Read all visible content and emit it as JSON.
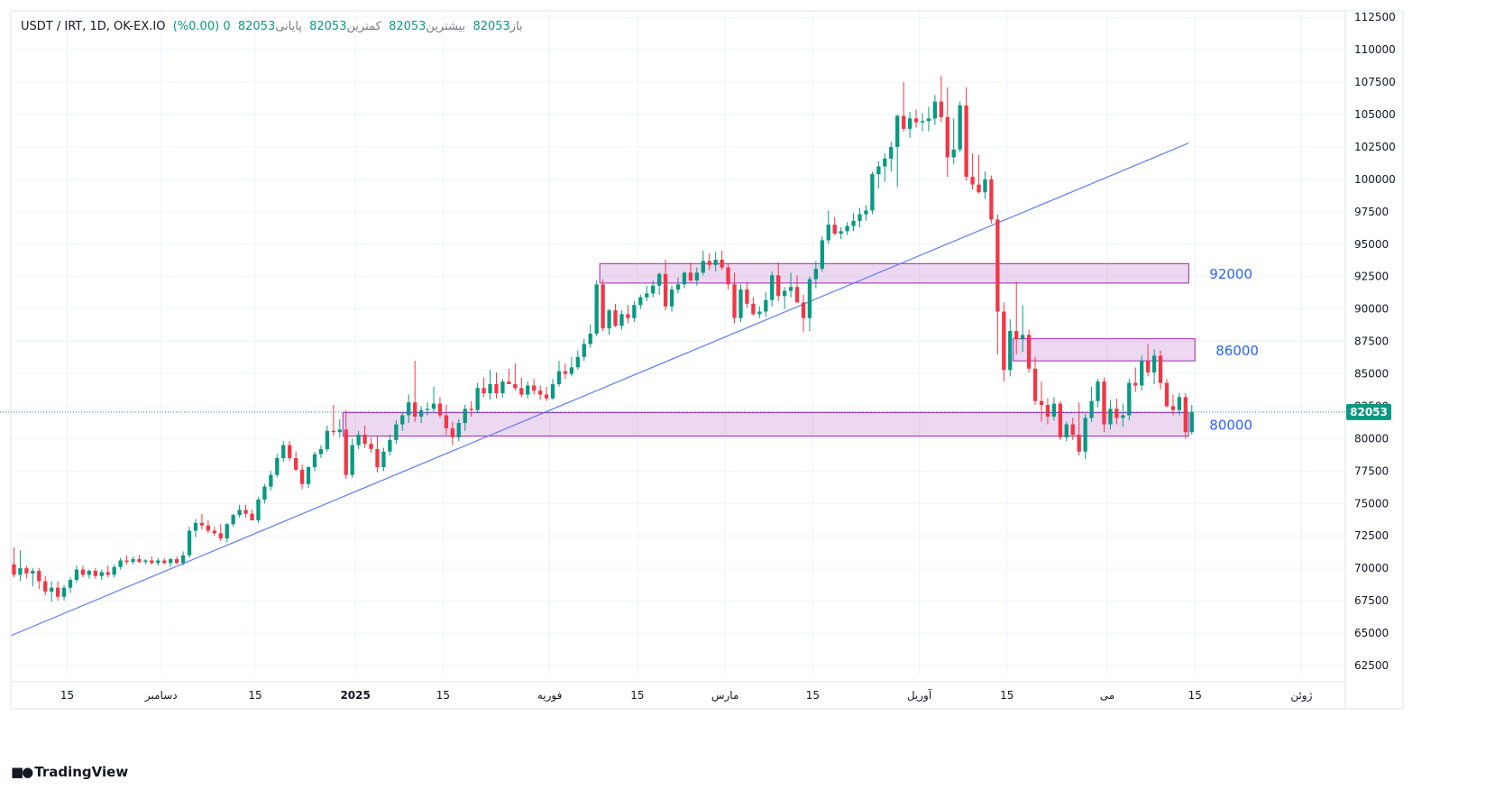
{
  "legend": {
    "symbol": "USDT / IRT, 1D, OK-EX.IO",
    "open_label": "باز",
    "open": "82053",
    "high_label": "بیشترین",
    "high": "82053",
    "low_label": "کمترین",
    "low": "82053",
    "close_label": "پایانی",
    "close": "82053",
    "change": "0 (0.00%)"
  },
  "branding": {
    "text": "TradingView"
  },
  "colors": {
    "up": "#089981",
    "down": "#f23645",
    "zone": "#9c27b0",
    "trend": "#5b7cf5",
    "zone_label": "#2962ff"
  },
  "chart_data": {
    "type": "candlestick",
    "y_axis": {
      "range": [
        61800,
        113000
      ],
      "ticks": [
        62500,
        65000,
        67500,
        70000,
        72500,
        75000,
        77500,
        80000,
        82500,
        85000,
        87500,
        90000,
        92500,
        95000,
        97500,
        100000,
        102500,
        105000,
        107500,
        110000,
        112500
      ],
      "tick_labels": [
        "62500",
        "65000",
        "67500",
        "70000",
        "72500",
        "75000",
        "77500",
        "80000",
        "82500",
        "85000",
        "87500",
        "90000",
        "92500",
        "95000",
        "97500",
        "100000",
        "102500",
        "105000",
        "107500",
        "110000",
        "112500"
      ]
    },
    "x_axis": {
      "range_days": [
        0,
        213
      ],
      "ticks": [
        {
          "day": 9,
          "label": "15",
          "bold": false
        },
        {
          "day": 24,
          "label": "دسامبر",
          "bold": false
        },
        {
          "day": 39,
          "label": "15",
          "bold": false
        },
        {
          "day": 55,
          "label": "2025",
          "bold": true
        },
        {
          "day": 69,
          "label": "15",
          "bold": false
        },
        {
          "day": 86,
          "label": "فوریه",
          "bold": false
        },
        {
          "day": 100,
          "label": "15",
          "bold": false
        },
        {
          "day": 114,
          "label": "مارس",
          "bold": false
        },
        {
          "day": 128,
          "label": "15",
          "bold": false
        },
        {
          "day": 145,
          "label": "آوریل",
          "bold": false
        },
        {
          "day": 159,
          "label": "15",
          "bold": false
        },
        {
          "day": 175,
          "label": "می",
          "bold": false
        },
        {
          "day": 189,
          "label": "15",
          "bold": false
        },
        {
          "day": 206,
          "label": "ژوئن",
          "bold": false
        }
      ]
    },
    "last_price": 82053,
    "last_price_label": "82053",
    "zones": [
      {
        "low": 92000,
        "high": 93500,
        "day_start": 94,
        "day_end": 188,
        "label": "92000"
      },
      {
        "low": 86000,
        "high": 87700,
        "day_start": 160,
        "day_end": 189,
        "label": "86000"
      },
      {
        "low": 80200,
        "high": 82000,
        "day_start": 53,
        "day_end": 188,
        "label": "80000"
      }
    ],
    "trendline": {
      "from": {
        "day": 0,
        "price": 64800
      },
      "to": {
        "day": 188,
        "price": 102800
      }
    },
    "candles": [
      [
        70300,
        71600,
        69300,
        69500
      ],
      [
        69500,
        71400,
        69000,
        70000
      ],
      [
        70000,
        70200,
        69200,
        69600
      ],
      [
        69600,
        70000,
        68600,
        69800
      ],
      [
        69800,
        70000,
        68400,
        69000
      ],
      [
        69000,
        69400,
        67900,
        68200
      ],
      [
        68200,
        69000,
        67400,
        68500
      ],
      [
        68500,
        69000,
        67500,
        67800
      ],
      [
        67800,
        68700,
        67500,
        68500
      ],
      [
        68500,
        69300,
        68100,
        69100
      ],
      [
        69100,
        70200,
        68900,
        69900
      ],
      [
        69900,
        70200,
        69300,
        69500
      ],
      [
        69500,
        69900,
        69200,
        69800
      ],
      [
        69800,
        70000,
        69200,
        69400
      ],
      [
        69400,
        69900,
        69100,
        69700
      ],
      [
        69700,
        70200,
        69300,
        69500
      ],
      [
        69500,
        70300,
        69300,
        70100
      ],
      [
        70100,
        70800,
        69900,
        70600
      ],
      [
        70600,
        71000,
        70300,
        70500
      ],
      [
        70500,
        70900,
        70300,
        70700
      ],
      [
        70700,
        71000,
        70400,
        70500
      ],
      [
        70500,
        70700,
        70300,
        70600
      ],
      [
        70600,
        70900,
        70300,
        70400
      ],
      [
        70400,
        70800,
        70200,
        70600
      ],
      [
        70600,
        70800,
        70300,
        70400
      ],
      [
        70400,
        70800,
        70100,
        70700
      ],
      [
        70700,
        70900,
        70300,
        70400
      ],
      [
        70400,
        71300,
        70200,
        71000
      ],
      [
        71000,
        73200,
        70800,
        72900
      ],
      [
        72900,
        73800,
        72400,
        73500
      ],
      [
        73500,
        74200,
        73000,
        73300
      ],
      [
        73300,
        73700,
        72700,
        72900
      ],
      [
        72900,
        73200,
        72500,
        72700
      ],
      [
        72700,
        73400,
        72100,
        72300
      ],
      [
        72300,
        73500,
        72000,
        73400
      ],
      [
        73400,
        74200,
        73200,
        74100
      ],
      [
        74100,
        74900,
        73900,
        74500
      ],
      [
        74500,
        74900,
        73900,
        74200
      ],
      [
        74200,
        74500,
        73700,
        73700
      ],
      [
        73700,
        75500,
        73500,
        75300
      ],
      [
        75300,
        76500,
        75000,
        76300
      ],
      [
        76300,
        77500,
        76000,
        77200
      ],
      [
        77200,
        78800,
        77000,
        78500
      ],
      [
        78500,
        79800,
        78200,
        79500
      ],
      [
        79500,
        79800,
        78300,
        78500
      ],
      [
        78500,
        79000,
        77500,
        77600
      ],
      [
        77600,
        78000,
        76100,
        76500
      ],
      [
        76500,
        77900,
        76200,
        77800
      ],
      [
        77800,
        79000,
        77500,
        78800
      ],
      [
        78800,
        79500,
        78500,
        79200
      ],
      [
        79200,
        81000,
        79000,
        80600
      ],
      [
        80600,
        82600,
        80200,
        80500
      ],
      [
        80500,
        81500,
        80100,
        80700
      ],
      [
        80700,
        82200,
        76900,
        77200
      ],
      [
        77200,
        80000,
        77000,
        79500
      ],
      [
        79500,
        80600,
        79200,
        80300
      ],
      [
        80300,
        81000,
        79300,
        79600
      ],
      [
        79600,
        80100,
        78900,
        79200
      ],
      [
        79200,
        80200,
        77400,
        77800
      ],
      [
        77800,
        79300,
        77500,
        79000
      ],
      [
        79000,
        80300,
        78700,
        79900
      ],
      [
        79900,
        81400,
        79600,
        81100
      ],
      [
        81100,
        82000,
        80600,
        81800
      ],
      [
        81800,
        83400,
        81200,
        82800
      ],
      [
        82800,
        86000,
        81300,
        81700
      ],
      [
        81700,
        82500,
        81200,
        82200
      ],
      [
        82200,
        82800,
        81800,
        82300
      ],
      [
        82300,
        84000,
        82000,
        82700
      ],
      [
        82700,
        83200,
        81600,
        81800
      ],
      [
        81800,
        82600,
        80300,
        80800
      ],
      [
        80800,
        81300,
        79500,
        80100
      ],
      [
        80100,
        81500,
        79800,
        81200
      ],
      [
        81200,
        82600,
        80600,
        82300
      ],
      [
        82300,
        82900,
        81700,
        82200
      ],
      [
        82200,
        84300,
        82000,
        83900
      ],
      [
        83900,
        84700,
        83200,
        83500
      ],
      [
        83500,
        85300,
        83000,
        84200
      ],
      [
        84200,
        85100,
        83100,
        83500
      ],
      [
        83500,
        84600,
        83200,
        84400
      ],
      [
        84400,
        85400,
        84200,
        84200
      ],
      [
        84200,
        85800,
        83700,
        83900
      ],
      [
        83900,
        84700,
        83200,
        83400
      ],
      [
        83400,
        84400,
        83100,
        84100
      ],
      [
        84100,
        84600,
        83400,
        83700
      ],
      [
        83700,
        84100,
        83000,
        83400
      ],
      [
        83400,
        84000,
        82900,
        83100
      ],
      [
        83100,
        84600,
        83000,
        84200
      ],
      [
        84200,
        86000,
        84000,
        85200
      ],
      [
        85200,
        85800,
        84600,
        85000
      ],
      [
        85000,
        86300,
        84800,
        85500
      ],
      [
        85500,
        86800,
        85300,
        86300
      ],
      [
        86300,
        87700,
        86000,
        87300
      ],
      [
        87300,
        88800,
        87000,
        88100
      ],
      [
        88100,
        92200,
        87900,
        91900
      ],
      [
        91900,
        92300,
        88300,
        88500
      ],
      [
        88500,
        90000,
        88000,
        89900
      ],
      [
        89900,
        90400,
        88600,
        88700
      ],
      [
        88700,
        89900,
        88400,
        89600
      ],
      [
        89600,
        90300,
        88900,
        89300
      ],
      [
        89300,
        90600,
        89000,
        90300
      ],
      [
        90300,
        91100,
        90000,
        90900
      ],
      [
        90900,
        91800,
        90600,
        91200
      ],
      [
        91200,
        92200,
        90900,
        91800
      ],
      [
        91800,
        92800,
        91100,
        92700
      ],
      [
        92700,
        93800,
        89900,
        90200
      ],
      [
        90200,
        91800,
        89800,
        91500
      ],
      [
        91500,
        92400,
        91200,
        91900
      ],
      [
        91900,
        92900,
        91600,
        92800
      ],
      [
        92800,
        93600,
        92100,
        92200
      ],
      [
        92200,
        93200,
        91800,
        92800
      ],
      [
        92800,
        94500,
        92600,
        93700
      ],
      [
        93700,
        94300,
        93000,
        93400
      ],
      [
        93400,
        94400,
        92900,
        93800
      ],
      [
        93800,
        94500,
        93000,
        93200
      ],
      [
        93200,
        93500,
        91500,
        91900
      ],
      [
        91900,
        92800,
        88900,
        89300
      ],
      [
        89300,
        91900,
        89000,
        91500
      ],
      [
        91500,
        92100,
        90100,
        90400
      ],
      [
        90400,
        90900,
        89500,
        89600
      ],
      [
        89600,
        90200,
        89300,
        89800
      ],
      [
        89800,
        91300,
        89400,
        90700
      ],
      [
        90700,
        92900,
        90200,
        92600
      ],
      [
        92600,
        93600,
        90600,
        91000
      ],
      [
        91000,
        91700,
        90000,
        91400
      ],
      [
        91400,
        92800,
        90900,
        91700
      ],
      [
        91700,
        92600,
        90600,
        90500
      ],
      [
        90500,
        91100,
        88200,
        89300
      ],
      [
        89300,
        92500,
        88300,
        92300
      ],
      [
        92300,
        93700,
        91600,
        93100
      ],
      [
        93100,
        95600,
        92900,
        95300
      ],
      [
        95300,
        97600,
        95000,
        96500
      ],
      [
        96500,
        97100,
        95700,
        95800
      ],
      [
        95800,
        96300,
        95400,
        96000
      ],
      [
        96000,
        96700,
        95700,
        96400
      ],
      [
        96400,
        97400,
        96000,
        96800
      ],
      [
        96800,
        97800,
        96300,
        97300
      ],
      [
        97300,
        98000,
        96800,
        97600
      ],
      [
        97600,
        100600,
        97300,
        100400
      ],
      [
        100400,
        101400,
        99300,
        101000
      ],
      [
        101000,
        102000,
        99800,
        101600
      ],
      [
        101600,
        102900,
        100600,
        102500
      ],
      [
        102500,
        105000,
        99400,
        104900
      ],
      [
        104900,
        107500,
        103700,
        103900
      ],
      [
        103900,
        105200,
        103200,
        104700
      ],
      [
        104700,
        105400,
        104000,
        104400
      ],
      [
        104400,
        105100,
        103700,
        104500
      ],
      [
        104500,
        105600,
        103700,
        104700
      ],
      [
        104700,
        106500,
        104200,
        106000
      ],
      [
        106000,
        108000,
        104400,
        104800
      ],
      [
        104800,
        107100,
        100200,
        101700
      ],
      [
        101700,
        104700,
        101200,
        102300
      ],
      [
        102300,
        106000,
        102100,
        105700
      ],
      [
        105700,
        107100,
        99900,
        100200
      ],
      [
        100200,
        102000,
        99200,
        99600
      ],
      [
        99600,
        101900,
        98900,
        99000
      ],
      [
        99000,
        100600,
        98500,
        100000
      ],
      [
        100000,
        100300,
        96600,
        96900
      ],
      [
        96900,
        97300,
        86500,
        89800
      ],
      [
        89800,
        90500,
        84400,
        85300
      ],
      [
        85300,
        89200,
        84800,
        88300
      ],
      [
        88300,
        92100,
        86500,
        87700
      ],
      [
        87700,
        90300,
        86700,
        88000
      ],
      [
        88000,
        88400,
        85100,
        85400
      ],
      [
        85400,
        86300,
        82600,
        82900
      ],
      [
        82900,
        84400,
        81300,
        82600
      ],
      [
        82600,
        83100,
        81100,
        81700
      ],
      [
        81700,
        83200,
        81400,
        82700
      ],
      [
        82700,
        82900,
        79900,
        80100
      ],
      [
        80100,
        81300,
        79800,
        81100
      ],
      [
        81100,
        81600,
        79900,
        80300
      ],
      [
        80300,
        82800,
        78700,
        79000
      ],
      [
        79000,
        81900,
        78400,
        81600
      ],
      [
        81600,
        84000,
        81300,
        82900
      ],
      [
        82900,
        84600,
        82400,
        84400
      ],
      [
        84400,
        84700,
        80500,
        81100
      ],
      [
        81100,
        83000,
        80700,
        82300
      ],
      [
        82300,
        83100,
        81100,
        81600
      ],
      [
        81600,
        82700,
        80900,
        81800
      ],
      [
        81800,
        84600,
        81400,
        84300
      ],
      [
        84300,
        85500,
        83600,
        84100
      ],
      [
        84100,
        86400,
        83700,
        86000
      ],
      [
        86000,
        87300,
        84800,
        85100
      ],
      [
        85100,
        86900,
        84200,
        86400
      ],
      [
        86400,
        86800,
        83800,
        84300
      ],
      [
        84300,
        84600,
        82400,
        82500
      ],
      [
        82500,
        83400,
        81800,
        82200
      ],
      [
        82200,
        83500,
        81800,
        83200
      ],
      [
        83200,
        83500,
        80000,
        80500
      ],
      [
        80500,
        82600,
        80300,
        82053
      ]
    ]
  }
}
